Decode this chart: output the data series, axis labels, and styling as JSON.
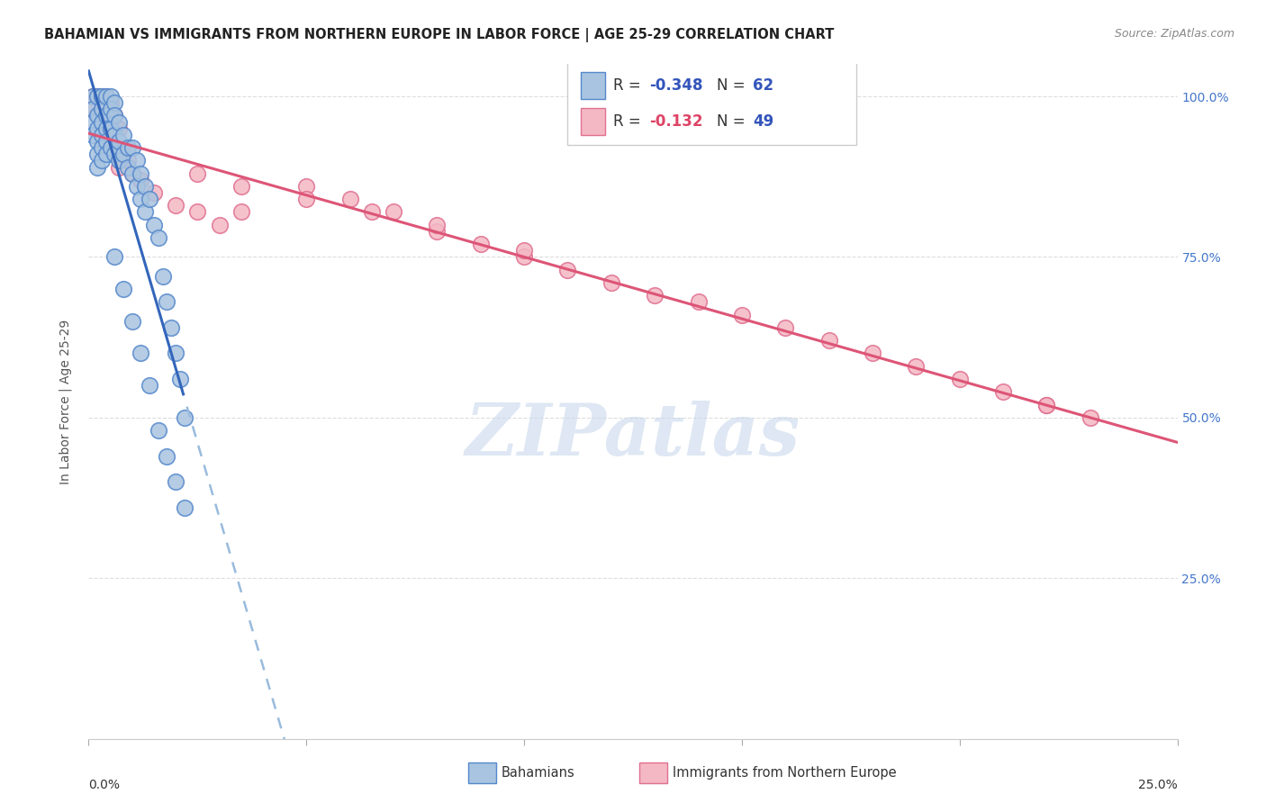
{
  "title": "BAHAMIAN VS IMMIGRANTS FROM NORTHERN EUROPE IN LABOR FORCE | AGE 25-29 CORRELATION CHART",
  "source": "Source: ZipAtlas.com",
  "ylabel": "In Labor Force | Age 25-29",
  "legend_blue_label": "Bahamians",
  "legend_pink_label": "Immigrants from Northern Europe",
  "blue_R": "-0.348",
  "blue_N": "62",
  "pink_R": "-0.132",
  "pink_N": "49",
  "blue_fill": "#A8C4E0",
  "pink_fill": "#F4B8C4",
  "blue_edge": "#5588CC",
  "pink_edge": "#E07090",
  "blue_line": "#3366BB",
  "pink_line": "#DD5577",
  "blue_dash": "#99BBDD",
  "watermark_color": "#C8D8EC",
  "bg_color": "#FFFFFF",
  "grid_color": "#DDDDDD",
  "xmin": 0.0,
  "xmax": 0.25,
  "ymin": 0.0,
  "ymax": 1.05,
  "blue_scatter_x": [
    0.001,
    0.001,
    0.001,
    0.001,
    0.002,
    0.002,
    0.002,
    0.002,
    0.002,
    0.002,
    0.003,
    0.003,
    0.003,
    0.003,
    0.003,
    0.003,
    0.004,
    0.004,
    0.004,
    0.004,
    0.004,
    0.005,
    0.005,
    0.005,
    0.005,
    0.006,
    0.006,
    0.006,
    0.006,
    0.007,
    0.007,
    0.007,
    0.008,
    0.008,
    0.009,
    0.009,
    0.01,
    0.01,
    0.011,
    0.011,
    0.012,
    0.012,
    0.013,
    0.013,
    0.014,
    0.015,
    0.016,
    0.017,
    0.018,
    0.019,
    0.02,
    0.021,
    0.022,
    0.006,
    0.008,
    0.01,
    0.012,
    0.014,
    0.016,
    0.018,
    0.02,
    0.022
  ],
  "blue_scatter_y": [
    1.0,
    0.98,
    0.96,
    0.94,
    1.0,
    0.97,
    0.95,
    0.93,
    0.91,
    0.89,
    1.0,
    0.98,
    0.96,
    0.94,
    0.92,
    0.9,
    1.0,
    0.97,
    0.95,
    0.93,
    0.91,
    1.0,
    0.98,
    0.95,
    0.92,
    0.99,
    0.97,
    0.94,
    0.91,
    0.96,
    0.93,
    0.9,
    0.94,
    0.91,
    0.92,
    0.89,
    0.92,
    0.88,
    0.9,
    0.86,
    0.88,
    0.84,
    0.86,
    0.82,
    0.84,
    0.8,
    0.78,
    0.72,
    0.68,
    0.64,
    0.6,
    0.56,
    0.5,
    0.75,
    0.7,
    0.65,
    0.6,
    0.55,
    0.48,
    0.44,
    0.4,
    0.36
  ],
  "pink_scatter_x": [
    0.001,
    0.001,
    0.002,
    0.002,
    0.003,
    0.003,
    0.004,
    0.004,
    0.005,
    0.005,
    0.006,
    0.006,
    0.007,
    0.007,
    0.008,
    0.009,
    0.01,
    0.012,
    0.015,
    0.02,
    0.025,
    0.03,
    0.035,
    0.05,
    0.06,
    0.07,
    0.08,
    0.09,
    0.1,
    0.11,
    0.12,
    0.13,
    0.14,
    0.15,
    0.16,
    0.17,
    0.18,
    0.19,
    0.2,
    0.21,
    0.22,
    0.23,
    0.025,
    0.035,
    0.05,
    0.065,
    0.08,
    0.1,
    0.22
  ],
  "pink_scatter_y": [
    1.0,
    0.98,
    1.0,
    0.97,
    1.0,
    0.96,
    1.0,
    0.95,
    0.99,
    0.93,
    0.97,
    0.91,
    0.95,
    0.89,
    0.92,
    0.9,
    0.88,
    0.87,
    0.85,
    0.83,
    0.82,
    0.8,
    0.82,
    0.86,
    0.84,
    0.82,
    0.79,
    0.77,
    0.75,
    0.73,
    0.71,
    0.69,
    0.68,
    0.66,
    0.64,
    0.62,
    0.6,
    0.58,
    0.56,
    0.54,
    0.52,
    0.5,
    0.88,
    0.86,
    0.84,
    0.82,
    0.8,
    0.76,
    0.52
  ]
}
